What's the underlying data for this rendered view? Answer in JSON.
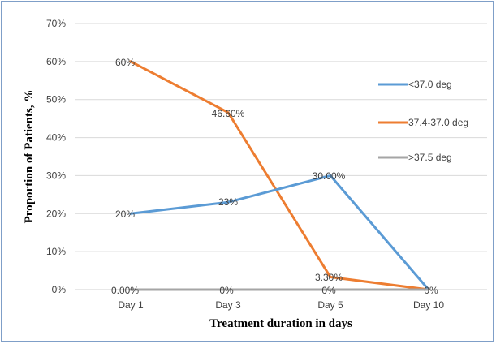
{
  "chart_data": {
    "type": "line",
    "title": "",
    "xlabel": "Treatment duration in  days",
    "ylabel": "Proportion of Patients, %",
    "categories": [
      "Day 1",
      "Day 3",
      "Day 5",
      "Day 10"
    ],
    "ylim": [
      0,
      70
    ],
    "y_ticks": [
      0,
      10,
      20,
      30,
      40,
      50,
      60,
      70
    ],
    "y_tick_labels": [
      "0%",
      "10%",
      "20%",
      "30%",
      "40%",
      "50%",
      "60%",
      "70%"
    ],
    "grid": "horizontal",
    "legend_position": "right",
    "series": [
      {
        "name": "<37.0 deg",
        "color": "#5b9bd5",
        "values": [
          20,
          23,
          30,
          0
        ],
        "labels": [
          "20%",
          "23%",
          "30.00%",
          "0%"
        ]
      },
      {
        "name": "37.4-37.0 deg",
        "color": "#ed7d31",
        "values": [
          60,
          46.6,
          3.3,
          0
        ],
        "labels": [
          "60%",
          "46.60%",
          "3.30%",
          ""
        ]
      },
      {
        "name": ">37.5 deg",
        "color": "#a5a5a5",
        "values": [
          0,
          0,
          0,
          0
        ],
        "labels": [
          "0.00%",
          "0%",
          "0%",
          ""
        ]
      }
    ]
  }
}
